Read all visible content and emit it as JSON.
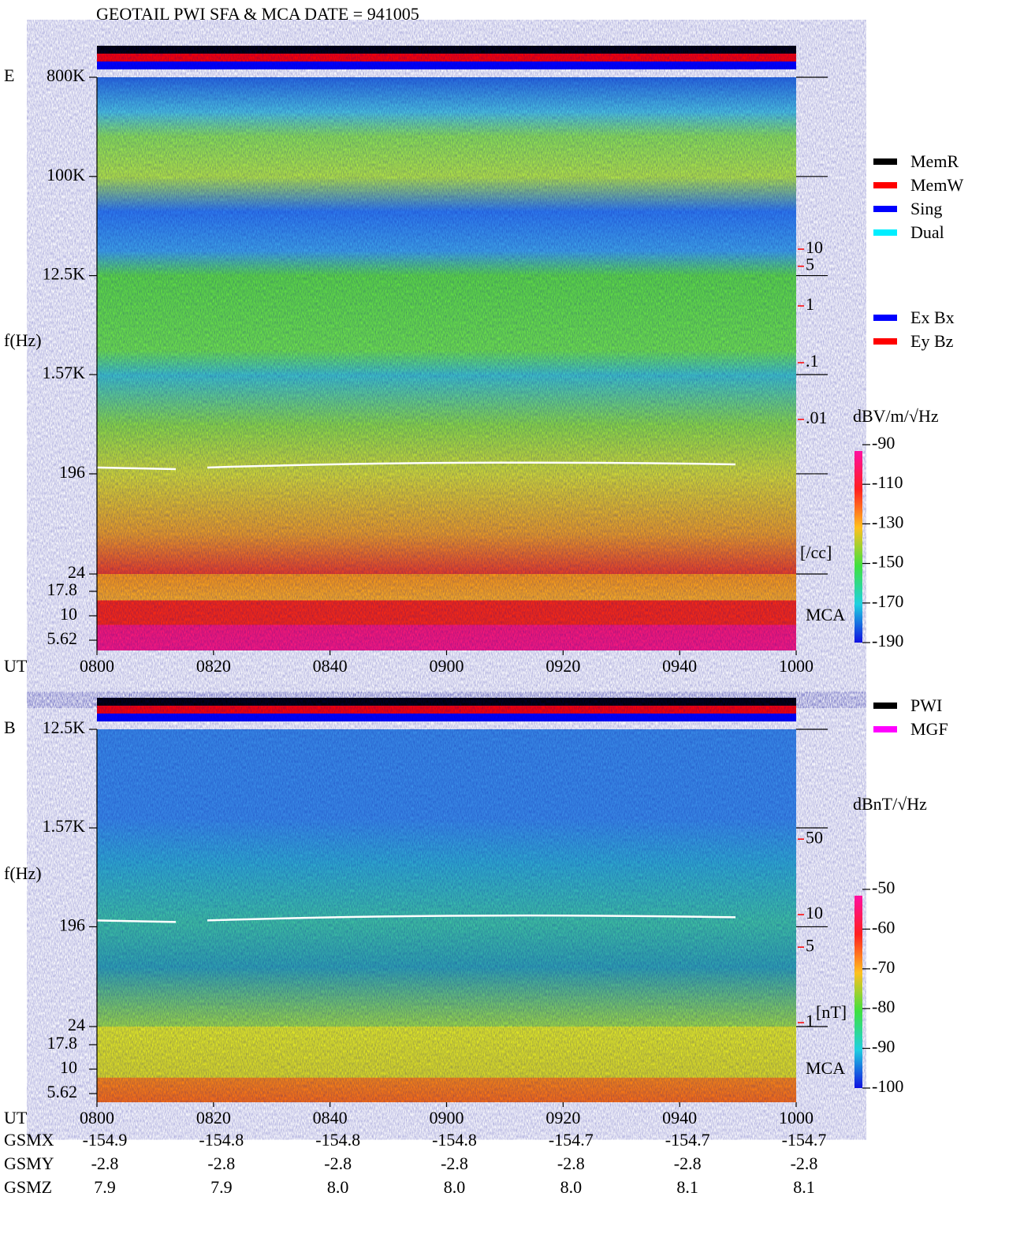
{
  "title": "GEOTAIL  PWI SFA & MCA   DATE = 941005",
  "chart_data": [
    {
      "type": "spectrogram",
      "panel_label": "E",
      "y_label": "f(Hz)",
      "x_label": "UT",
      "log": true,
      "ylim": [
        24,
        800000
      ],
      "yticks": [
        {
          "value": 800000,
          "label": "800K"
        },
        {
          "value": 100000,
          "label": "100K"
        },
        {
          "value": 12500,
          "label": "12.5K"
        },
        {
          "value": 1570,
          "label": "1.57K"
        },
        196,
        24
      ],
      "mca_lim": [
        5.62,
        17.8
      ],
      "mca_ticks": [
        17.8,
        10,
        5.62
      ],
      "mca_label": "MCA",
      "x": [
        "0800",
        "0820",
        "0840",
        "0900",
        "0920",
        "0940",
        "1000"
      ],
      "legend": [
        {
          "name": "MemR",
          "color": "#000000"
        },
        {
          "name": "MemW",
          "color": "#ff0000"
        },
        {
          "name": "Sing",
          "color": "#0000ff"
        },
        {
          "name": "Dual",
          "color": "#00eeff"
        }
      ],
      "legend2": [
        {
          "name": "Ex Bx",
          "color": "#0000ff"
        },
        {
          "name": "Ey Bz",
          "color": "#ff0000"
        }
      ],
      "density_lim": [
        0.01,
        10
      ],
      "density_ticks": [
        10,
        5,
        1,
        {
          "value": 0.1,
          "label": ".1"
        },
        {
          "value": 0.01,
          "label": ".01"
        }
      ],
      "density_label": "[/cc]",
      "colorbar_label": "dBV/m/√Hz",
      "colorbar_lim": [
        -190,
        -90
      ],
      "colorbar_ticks": [
        -90,
        -110,
        -130,
        -150,
        -170,
        -190
      ]
    },
    {
      "type": "spectrogram",
      "panel_label": "B",
      "y_label": "f(Hz)",
      "x_label": "UT",
      "log": true,
      "ylim": [
        24,
        12500
      ],
      "yticks": [
        {
          "value": 12500,
          "label": "12.5K"
        },
        {
          "value": 1570,
          "label": "1.57K"
        },
        196,
        24
      ],
      "mca_lim": [
        5.62,
        17.8
      ],
      "mca_ticks": [
        17.8,
        10,
        5.62
      ],
      "mca_label": "MCA",
      "x": [
        "0800",
        "0820",
        "0840",
        "0900",
        "0920",
        "0940",
        "1000"
      ],
      "legend": [
        {
          "name": "PWI",
          "color": "#000000"
        },
        {
          "name": "MGF",
          "color": "#ff00ff"
        }
      ],
      "density_lim": [
        1,
        10
      ],
      "density_ticks": [
        50,
        10,
        5,
        1
      ],
      "density_label": "[nT]",
      "colorbar_label": "dBnT/√Hz",
      "colorbar_lim": [
        -100,
        -50
      ],
      "colorbar_ticks": [
        -50,
        -60,
        -70,
        -80,
        -90,
        -100
      ]
    }
  ],
  "orbit": {
    "rows": [
      {
        "name": "GSMX",
        "values": [
          "-154.9",
          "-154.8",
          "-154.8",
          "-154.8",
          "-154.7",
          "-154.7",
          "-154.7"
        ]
      },
      {
        "name": "GSMY",
        "values": [
          "-2.8",
          "-2.8",
          "-2.8",
          "-2.8",
          "-2.8",
          "-2.8",
          "-2.8"
        ]
      },
      {
        "name": "GSMZ",
        "values": [
          "7.9",
          "7.9",
          "8.0",
          "8.0",
          "8.0",
          "8.1",
          "8.1"
        ]
      }
    ]
  }
}
